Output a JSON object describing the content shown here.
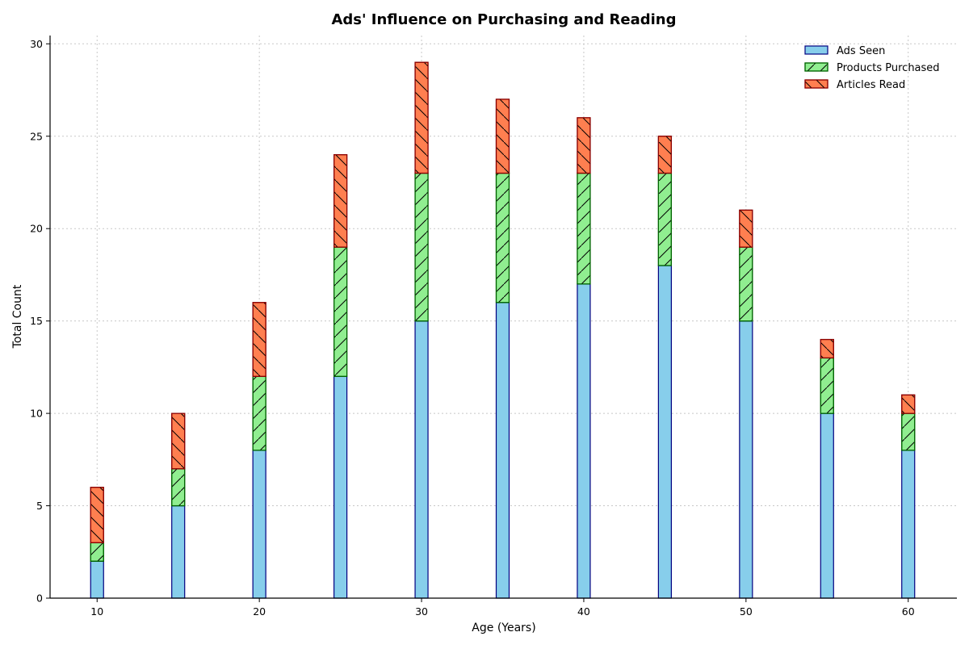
{
  "chart_data": {
    "type": "bar",
    "stacked": true,
    "title": "Ads' Influence on Purchasing and Reading",
    "xlabel": "Age (Years)",
    "ylabel": "Total Count",
    "x": [
      10,
      15,
      20,
      25,
      30,
      35,
      40,
      45,
      50,
      55,
      60
    ],
    "series": [
      {
        "name": "Ads Seen",
        "values": [
          2,
          5,
          8,
          12,
          15,
          16,
          17,
          18,
          15,
          10,
          8
        ],
        "fill": "#87ceeb",
        "edge": "#000080",
        "hatch": "none"
      },
      {
        "name": "Products Purchased",
        "values": [
          1,
          2,
          4,
          7,
          8,
          7,
          6,
          5,
          4,
          3,
          2
        ],
        "fill": "#90ee90",
        "edge": "#006400",
        "hatch": "/"
      },
      {
        "name": "Articles Read",
        "values": [
          3,
          3,
          4,
          5,
          6,
          4,
          3,
          2,
          2,
          1,
          1
        ],
        "fill": "#ff7f50",
        "edge": "#8b0000",
        "hatch": "\\"
      }
    ],
    "xlim": [
      7.1,
      63.0
    ],
    "ylim": [
      0,
      30.45
    ],
    "x_ticks": [
      "10",
      "20",
      "30",
      "40",
      "50",
      "60"
    ],
    "y_ticks": [
      "0",
      "5",
      "10",
      "15",
      "20",
      "25",
      "30"
    ],
    "grid": true,
    "legend_position": "top-right"
  }
}
